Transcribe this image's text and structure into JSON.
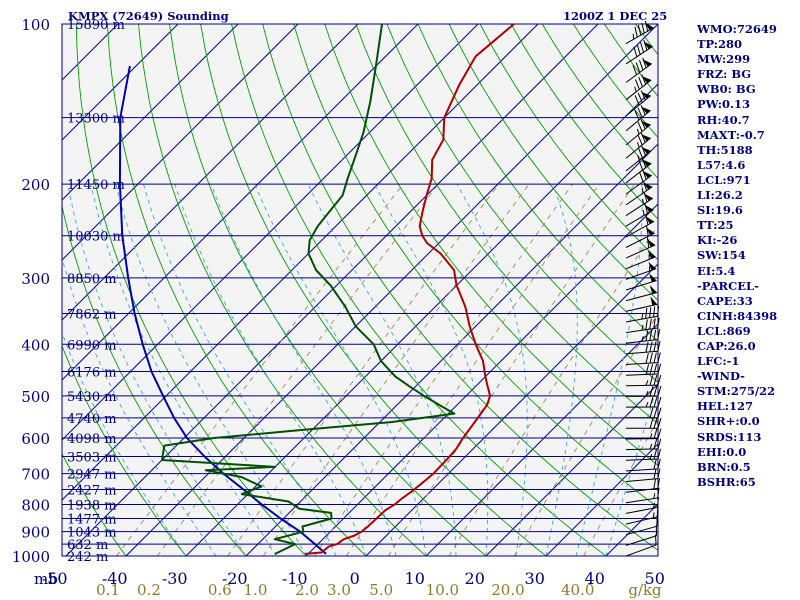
{
  "header": {
    "station_title": "KMPX (72649) Sounding",
    "time_label": "1200Z  1 DEC 25"
  },
  "indices": [
    "WMO:72649",
    "TP:280",
    "MW:299",
    "FRZ: BG",
    "WB0: BG",
    "PW:0.13",
    "RH:40.7",
    "MAXT:-0.7",
    "TH:5188",
    "L57:4.6",
    "LCL:971",
    "LI:26.2",
    "SI:19.6",
    "TT:25",
    "KI:-26",
    "SW:154",
    "EI:5.4",
    "-PARCEL-",
    "CAPE:33",
    "CINH:84398",
    "LCL:869",
    "CAP:26.0",
    "LFC:-1",
    "-WIND-",
    "STM:275/22",
    "HEL:127",
    "SHR+:0.0",
    "SRDS:113",
    "EHI:0.0",
    "BRN:0.5",
    "BSHR:65"
  ],
  "colors": {
    "isobar": "#00007f",
    "isotherm": "#0000a0",
    "dry_adiabat": "#00a000",
    "moist_adiabat": "#3aa6d6",
    "mixing_ratio": "#9b8a5a",
    "temperature": "#b00000",
    "dewpoint": "#005000",
    "parcel": "#0000b0",
    "wind": "#000000",
    "mixing_label": "#8c7a2c"
  },
  "chart_data": {
    "type": "skew-t",
    "xlabel_unit": "mb",
    "xlabel_right_unit": "g/kg",
    "pressure_levels": [
      {
        "p": 100,
        "label": "100",
        "height": "15890 m"
      },
      {
        "p": 150,
        "label": "",
        "height": "13300 m"
      },
      {
        "p": 200,
        "label": "200",
        "height": "11450 m"
      },
      {
        "p": 250,
        "label": "",
        "height": "10030 m"
      },
      {
        "p": 300,
        "label": "300",
        "height": "8850 m"
      },
      {
        "p": 350,
        "label": "",
        "height": "7862 m"
      },
      {
        "p": 400,
        "label": "400",
        "height": "6990 m"
      },
      {
        "p": 450,
        "label": "",
        "height": "6176 m"
      },
      {
        "p": 500,
        "label": "500",
        "height": "5430 m"
      },
      {
        "p": 550,
        "label": "",
        "height": "4740 m"
      },
      {
        "p": 600,
        "label": "600",
        "height": "4098 m"
      },
      {
        "p": 650,
        "label": "",
        "height": "3503 m"
      },
      {
        "p": 700,
        "label": "700",
        "height": "2947 m"
      },
      {
        "p": 750,
        "label": "",
        "height": "2427 m"
      },
      {
        "p": 800,
        "label": "800",
        "height": "1938 m"
      },
      {
        "p": 850,
        "label": "",
        "height": "1477 m"
      },
      {
        "p": 900,
        "label": "900",
        "height": "1043 m"
      },
      {
        "p": 950,
        "label": "",
        "height": "632 m"
      },
      {
        "p": 1000,
        "label": "1000",
        "height": "242 m"
      }
    ],
    "temperature_ticks": [
      -50,
      -40,
      -30,
      -20,
      -10,
      0,
      10,
      20,
      30,
      40,
      50
    ],
    "temperature_tick_labels": [
      "-50",
      "-40",
      "-30",
      "-20",
      "-10",
      "0",
      "10",
      "20",
      "30",
      "40",
      "50"
    ],
    "mixing_ratios": [
      0.1,
      0.2,
      0.6,
      1.0,
      2.0,
      3.0,
      5.0,
      10.0,
      20.0,
      40.0
    ],
    "mixing_ratio_labels": [
      "0.1",
      "0.2",
      "0.6",
      "1.0",
      "2.0",
      "3.0",
      "5.0",
      "10.0",
      "20.0",
      "40.0"
    ],
    "temperature_profile": [
      [
        991,
        -10.5
      ],
      [
        985,
        -8
      ],
      [
        960,
        -7.8
      ],
      [
        950,
        -6.8
      ],
      [
        930,
        -6.5
      ],
      [
        915,
        -5.3
      ],
      [
        900,
        -4.8
      ],
      [
        880,
        -4.6
      ],
      [
        850,
        -4.5
      ],
      [
        820,
        -4.4
      ],
      [
        800,
        -3.8
      ],
      [
        780,
        -3.6
      ],
      [
        760,
        -3.2
      ],
      [
        730,
        -2.8
      ],
      [
        700,
        -2.5
      ],
      [
        660,
        -2.6
      ],
      [
        630,
        -2.8
      ],
      [
        600,
        -3.5
      ],
      [
        560,
        -4.2
      ],
      [
        520,
        -5.0
      ],
      [
        500,
        -6.0
      ],
      [
        480,
        -8.0
      ],
      [
        460,
        -10.0
      ],
      [
        430,
        -13.0
      ],
      [
        400,
        -17.0
      ],
      [
        370,
        -21.0
      ],
      [
        340,
        -25.0
      ],
      [
        310,
        -30.0
      ],
      [
        290,
        -33.0
      ],
      [
        270,
        -38.0
      ],
      [
        258,
        -42.0
      ],
      [
        250,
        -44.0
      ],
      [
        240,
        -46.0
      ],
      [
        225,
        -48.0
      ],
      [
        210,
        -50.0
      ],
      [
        195,
        -52.0
      ],
      [
        180,
        -55.0
      ],
      [
        165,
        -56.5
      ],
      [
        150,
        -60.0
      ],
      [
        130,
        -63.0
      ],
      [
        115,
        -65.0
      ],
      [
        100,
        -64.0
      ]
    ],
    "dewpoint_profile": [
      [
        991,
        -15.5
      ],
      [
        950,
        -13.8
      ],
      [
        930,
        -18.0
      ],
      [
        900,
        -14.5
      ],
      [
        880,
        -15.5
      ],
      [
        850,
        -12.0
      ],
      [
        830,
        -13.0
      ],
      [
        815,
        -19.0
      ],
      [
        790,
        -22.0
      ],
      [
        765,
        -31.0
      ],
      [
        740,
        -29.0
      ],
      [
        710,
        -34.0
      ],
      [
        690,
        -41.0
      ],
      [
        680,
        -30.0
      ],
      [
        660,
        -50.0
      ],
      [
        640,
        -51.0
      ],
      [
        620,
        -52.0
      ],
      [
        600,
        -45.0
      ],
      [
        580,
        -32.0
      ],
      [
        560,
        -18.0
      ],
      [
        540,
        -9.0
      ],
      [
        520,
        -13.0
      ],
      [
        500,
        -17.0
      ],
      [
        480,
        -21.0
      ],
      [
        460,
        -25.0
      ],
      [
        430,
        -30.0
      ],
      [
        400,
        -34.0
      ],
      [
        370,
        -40.0
      ],
      [
        340,
        -45.0
      ],
      [
        310,
        -51.0
      ],
      [
        290,
        -56.0
      ],
      [
        270,
        -60.0
      ],
      [
        255,
        -62.0
      ],
      [
        240,
        -63.0
      ],
      [
        225,
        -63.5
      ],
      [
        210,
        -64.0
      ],
      [
        195,
        -66.0
      ],
      [
        180,
        -68.0
      ],
      [
        160,
        -71.0
      ],
      [
        140,
        -75.0
      ],
      [
        120,
        -80.0
      ],
      [
        100,
        -86.0
      ]
    ],
    "parcel_path": [
      [
        991,
        -7.0
      ],
      [
        950,
        -10.5
      ],
      [
        900,
        -15.0
      ],
      [
        850,
        -20.5
      ],
      [
        800,
        -26.0
      ],
      [
        750,
        -31.5
      ],
      [
        700,
        -37.5
      ],
      [
        650,
        -43.5
      ],
      [
        600,
        -49.5
      ],
      [
        550,
        -55.0
      ],
      [
        500,
        -60.5
      ],
      [
        450,
        -66.5
      ],
      [
        400,
        -72.5
      ],
      [
        350,
        -79.0
      ],
      [
        300,
        -86.0
      ],
      [
        250,
        -94.0
      ],
      [
        200,
        -103.0
      ],
      [
        150,
        -114.0
      ],
      [
        120,
        -121.0
      ]
    ]
  }
}
